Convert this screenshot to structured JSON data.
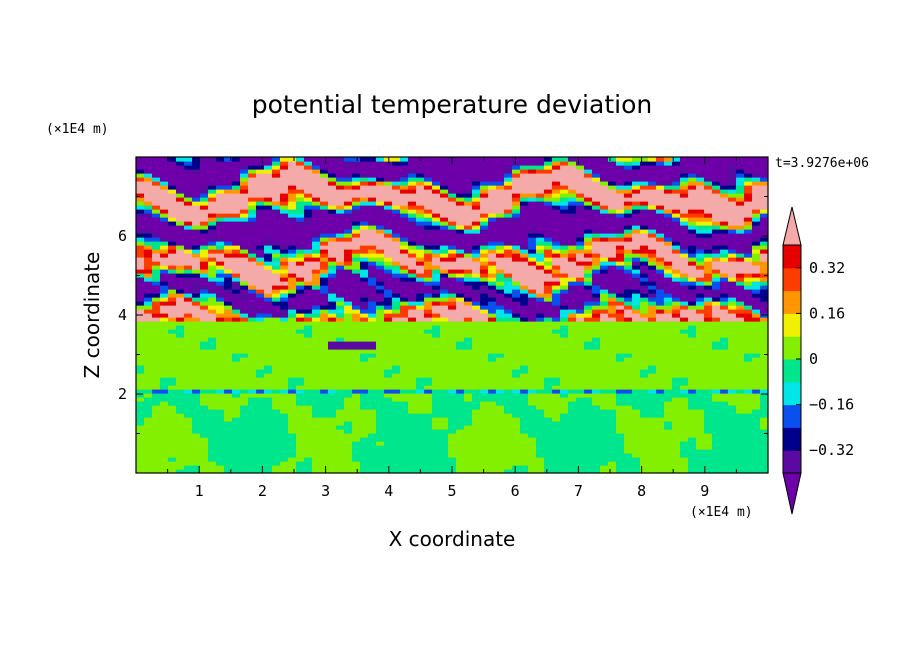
{
  "chart_data": {
    "type": "heatmap",
    "title": "potential temperature deviation",
    "xlabel": "X coordinate",
    "ylabel": "Z coordinate",
    "x_unit": "(×1E4 m)",
    "y_unit": "(×1E4 m)",
    "time_label": "t=3.9276e+06",
    "xlim": [
      0,
      10
    ],
    "ylim": [
      0,
      8
    ],
    "x_ticks": [
      1,
      2,
      3,
      4,
      5,
      6,
      7,
      8,
      9
    ],
    "y_ticks": [
      2,
      4,
      6
    ],
    "colorbar": {
      "levels": [
        -0.4,
        -0.32,
        -0.24,
        -0.16,
        -0.08,
        0,
        0.08,
        0.16,
        0.24,
        0.32,
        0.4
      ],
      "tick_labels": [
        "0.32",
        "0.16",
        "0",
        "−0.16",
        "−0.32"
      ],
      "tick_values": [
        0.32,
        0.16,
        0,
        -0.16,
        -0.32
      ],
      "colors_low_to_high": [
        "#5a0aa0",
        "#00008c",
        "#0a50f0",
        "#00e6e6",
        "#00e68c",
        "#82f000",
        "#f0f000",
        "#ff9600",
        "#ff3c00",
        "#e60000"
      ],
      "over_color": "#f5aaaa",
      "under_color": "#6e00aa"
    },
    "regions": [
      {
        "z_range": [
          0,
          2
        ],
        "description": "green convective cells",
        "dominant": [
          -0.04,
          0.04
        ]
      },
      {
        "z_range": [
          2,
          3.8
        ],
        "description": "near-zero green layer",
        "dominant": [
          0,
          0.08
        ]
      },
      {
        "z_range": [
          3.8,
          5.8
        ],
        "description": "mixed turbulent layer",
        "dominant": [
          -0.4,
          0.4
        ]
      },
      {
        "z_range": [
          5.8,
          8
        ],
        "description": "alternating bands",
        "dominant": [
          -0.4,
          0.4
        ]
      }
    ]
  }
}
